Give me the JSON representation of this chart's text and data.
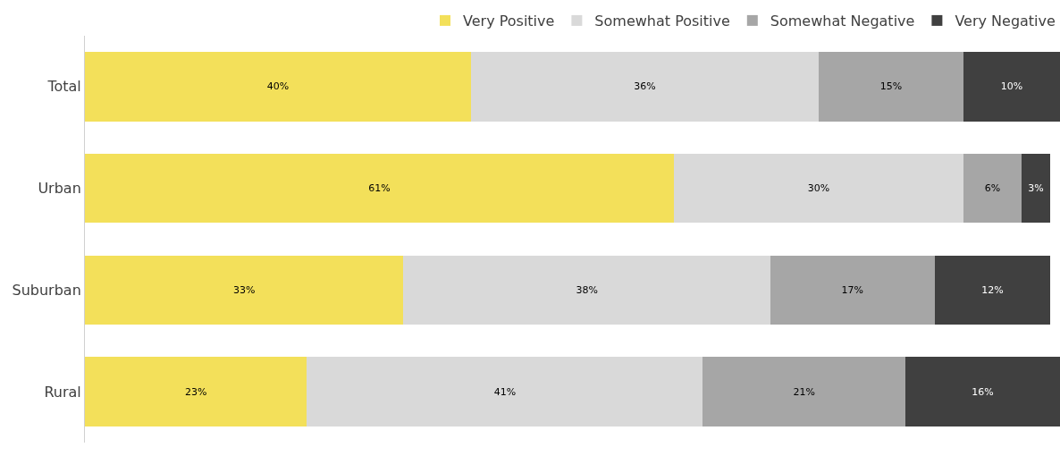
{
  "chart_data": {
    "type": "bar",
    "orientation": "horizontal",
    "stacked": true,
    "legend": "top",
    "categories": [
      "Total",
      "Urban",
      "Suburban",
      "Rural"
    ],
    "series": [
      {
        "name": "Very Positive",
        "color": "#f3e05a",
        "values": [
          40,
          61,
          33,
          23
        ],
        "value_labels": [
          "40%",
          "61%",
          "33%",
          "23%"
        ]
      },
      {
        "name": "Somewhat Positive",
        "color": "#d9d9d9",
        "values": [
          36,
          30,
          38,
          41
        ],
        "value_labels": [
          "36%",
          "30%",
          "38%",
          "41%"
        ]
      },
      {
        "name": "Somewhat Negative",
        "color": "#a6a6a6",
        "values": [
          15,
          6,
          17,
          21
        ],
        "value_labels": [
          "15%",
          "6%",
          "17%",
          "21%"
        ]
      },
      {
        "name": "Very Negative",
        "color": "#404040",
        "values": [
          10,
          3,
          12,
          16
        ],
        "value_labels": [
          "10%",
          "3%",
          "12%",
          "16%"
        ]
      }
    ]
  }
}
